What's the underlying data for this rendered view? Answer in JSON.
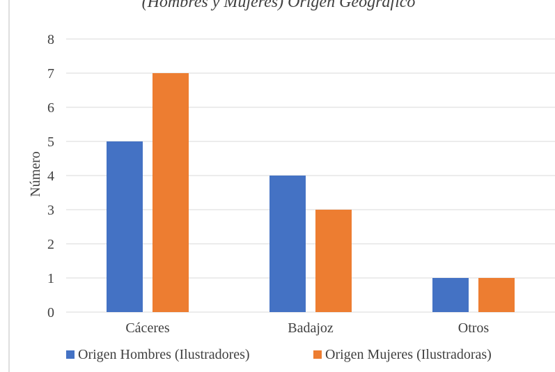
{
  "chart_data": {
    "type": "bar",
    "title": "(Hombres y Mujeres) Origen Geográfico",
    "ylabel": "Número",
    "xlabel": "",
    "categories": [
      "Cáceres",
      "Badajoz",
      "Otros"
    ],
    "series": [
      {
        "name": "Origen Hombres (Ilustradores)",
        "values": [
          5,
          4,
          1
        ],
        "color": "#4472C4"
      },
      {
        "name": "Origen Mujeres (Ilustradoras)",
        "values": [
          7,
          3,
          1
        ],
        "color": "#ED7D31"
      }
    ],
    "ylim": [
      0,
      8
    ],
    "yticks": [
      0,
      1,
      2,
      3,
      4,
      5,
      6,
      7,
      8
    ],
    "grid": true,
    "legend": "bottom"
  },
  "colors": {
    "grid": "#d9d9d9",
    "frame": "#bfbfbf",
    "text": "#404040"
  }
}
